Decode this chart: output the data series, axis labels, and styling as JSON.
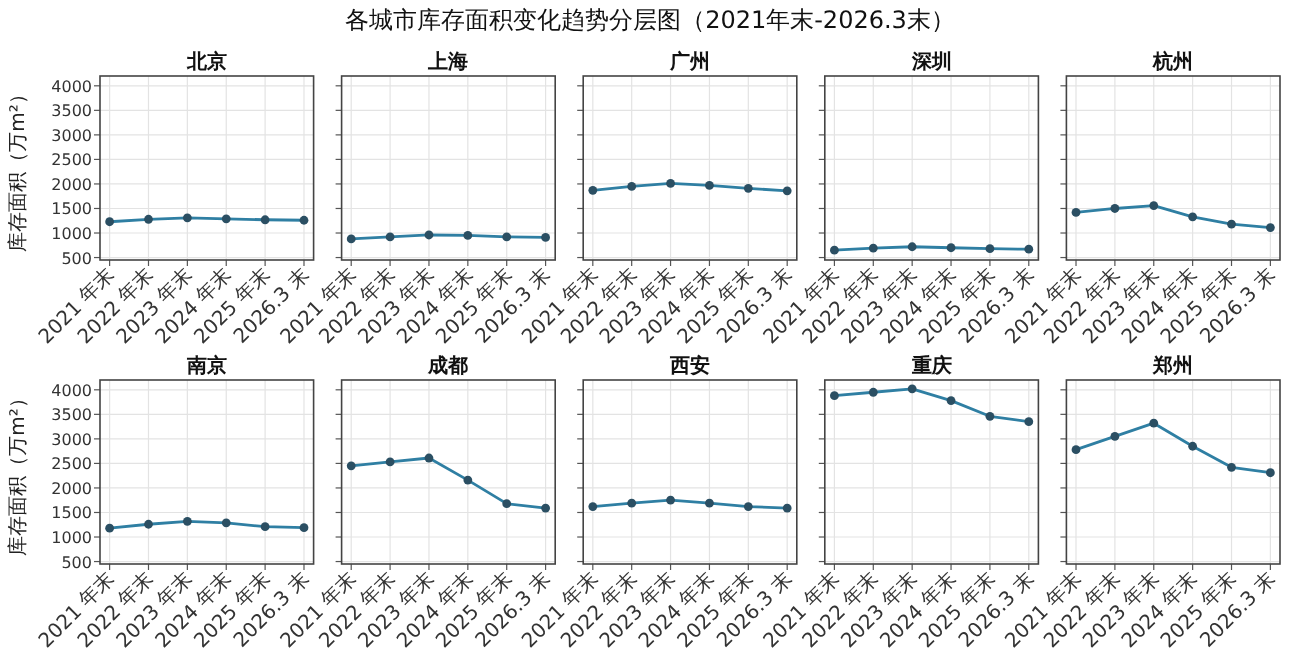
{
  "chart_data": [
    {
      "type": "line",
      "title": "北京",
      "ylabel": "库存面积（万m²）",
      "annotations": [
        "各城市库存面积变化趋势分层图（2021年末-2026.3末）"
      ],
      "categories": [
        "2021 年末",
        "2022 年末",
        "2023 年末",
        "2024 年末",
        "2025 年末",
        "2026.3 末"
      ],
      "series": [
        {
          "color": "#2f7fa3",
          "values": [
            1230,
            1280,
            1310,
            1290,
            1270,
            1260
          ]
        }
      ],
      "ylim": [
        450,
        4200
      ],
      "yticks": [
        500,
        1000,
        1500,
        2000,
        2500,
        3000,
        3500,
        4000
      ],
      "grid": true,
      "marker": "circle"
    },
    {
      "type": "line",
      "title": "上海",
      "categories": [
        "2021 年末",
        "2022 年末",
        "2023 年末",
        "2024 年末",
        "2025 年末",
        "2026.3 末"
      ],
      "series": [
        {
          "color": "#2f7fa3",
          "values": [
            880,
            920,
            960,
            950,
            920,
            910
          ]
        }
      ],
      "ylim": [
        450,
        4200
      ],
      "yticks": [
        500,
        1000,
        1500,
        2000,
        2500,
        3000,
        3500,
        4000
      ],
      "grid": true,
      "marker": "circle",
      "tick_labels": "x"
    },
    {
      "type": "line",
      "title": "广州",
      "categories": [
        "2021 年末",
        "2022 年末",
        "2023 年末",
        "2024 年末",
        "2025 年末",
        "2026.3 末"
      ],
      "series": [
        {
          "color": "#2f7fa3",
          "values": [
            1870,
            1950,
            2010,
            1970,
            1910,
            1860
          ]
        }
      ],
      "ylim": [
        450,
        4200
      ],
      "yticks": [
        500,
        1000,
        1500,
        2000,
        2500,
        3000,
        3500,
        4000
      ],
      "grid": true,
      "marker": "circle",
      "tick_labels": "x"
    },
    {
      "type": "line",
      "title": "深圳",
      "categories": [
        "2021 年末",
        "2022 年末",
        "2023 年末",
        "2024 年末",
        "2025 年末",
        "2026.3 末"
      ],
      "series": [
        {
          "color": "#2f7fa3",
          "values": [
            650,
            690,
            720,
            700,
            680,
            670
          ]
        }
      ],
      "ylim": [
        450,
        4200
      ],
      "yticks": [
        500,
        1000,
        1500,
        2000,
        2500,
        3000,
        3500,
        4000
      ],
      "grid": true,
      "marker": "circle",
      "tick_labels": "x"
    },
    {
      "type": "line",
      "title": "杭州",
      "categories": [
        "2021 年末",
        "2022 年末",
        "2023 年末",
        "2024 年末",
        "2025 年末",
        "2026.3 末"
      ],
      "series": [
        {
          "color": "#2f7fa3",
          "values": [
            1420,
            1500,
            1560,
            1330,
            1180,
            1110
          ]
        }
      ],
      "ylim": [
        450,
        4200
      ],
      "yticks": [
        500,
        1000,
        1500,
        2000,
        2500,
        3000,
        3500,
        4000
      ],
      "grid": true,
      "marker": "circle",
      "tick_labels": "x"
    },
    {
      "type": "line",
      "title": "南京",
      "ylabel": "库存面积（万m²）",
      "categories": [
        "2021 年末",
        "2022 年末",
        "2023 年末",
        "2024 年末",
        "2025 年末",
        "2026.3 末"
      ],
      "series": [
        {
          "color": "#2f7fa3",
          "values": [
            1180,
            1260,
            1320,
            1290,
            1210,
            1190
          ]
        }
      ],
      "ylim": [
        450,
        4200
      ],
      "yticks": [
        500,
        1000,
        1500,
        2000,
        2500,
        3000,
        3500,
        4000
      ],
      "grid": true,
      "marker": "circle"
    },
    {
      "type": "line",
      "title": "成都",
      "categories": [
        "2021 年末",
        "2022 年末",
        "2023 年末",
        "2024 年末",
        "2025 年末",
        "2026.3 末"
      ],
      "series": [
        {
          "color": "#2f7fa3",
          "values": [
            2450,
            2530,
            2610,
            2160,
            1680,
            1590
          ]
        }
      ],
      "ylim": [
        450,
        4200
      ],
      "yticks": [
        500,
        1000,
        1500,
        2000,
        2500,
        3000,
        3500,
        4000
      ],
      "grid": true,
      "marker": "circle",
      "tick_labels": "x"
    },
    {
      "type": "line",
      "title": "西安",
      "categories": [
        "2021 年末",
        "2022 年末",
        "2023 年末",
        "2024 年末",
        "2025 年末",
        "2026.3 末"
      ],
      "series": [
        {
          "color": "#2f7fa3",
          "values": [
            1620,
            1690,
            1750,
            1690,
            1620,
            1590
          ]
        }
      ],
      "ylim": [
        450,
        4200
      ],
      "yticks": [
        500,
        1000,
        1500,
        2000,
        2500,
        3000,
        3500,
        4000
      ],
      "grid": true,
      "marker": "circle",
      "tick_labels": "x"
    },
    {
      "type": "line",
      "title": "重庆",
      "categories": [
        "2021 年末",
        "2022 年末",
        "2023 年末",
        "2024 年末",
        "2025 年末",
        "2026.3 末"
      ],
      "series": [
        {
          "color": "#2f7fa3",
          "values": [
            3880,
            3950,
            4020,
            3780,
            3460,
            3350
          ]
        }
      ],
      "ylim": [
        450,
        4200
      ],
      "yticks": [
        500,
        1000,
        1500,
        2000,
        2500,
        3000,
        3500,
        4000
      ],
      "grid": true,
      "marker": "circle",
      "tick_labels": "x"
    },
    {
      "type": "line",
      "title": "郑州",
      "categories": [
        "2021 年末",
        "2022 年末",
        "2023 年末",
        "2024 年末",
        "2025 年末",
        "2026.3 末"
      ],
      "series": [
        {
          "color": "#2f7fa3",
          "values": [
            2780,
            3050,
            3320,
            2850,
            2420,
            2310
          ]
        }
      ],
      "ylim": [
        450,
        4200
      ],
      "yticks": [
        500,
        1000,
        1500,
        2000,
        2500,
        3000,
        3500,
        4000
      ],
      "grid": true,
      "marker": "circle",
      "tick_labels": "x"
    }
  ]
}
